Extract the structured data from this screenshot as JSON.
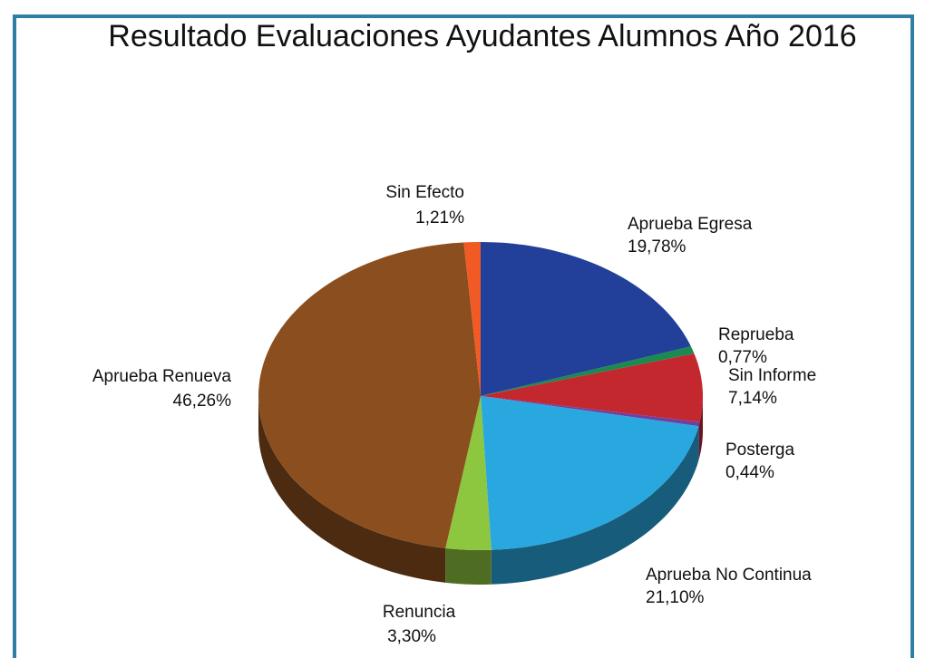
{
  "chart_data": {
    "type": "pie",
    "title": "Resultado Evaluaciones Ayudantes Alumnos  Año 2016",
    "categories": [
      "Aprueba Egresa",
      "Reprueba",
      "Sin Informe",
      "Posterga",
      "Aprueba No Continua",
      "Renuncia",
      "Aprueba Renueva",
      "Sin Efecto"
    ],
    "values": [
      19.78,
      0.77,
      7.14,
      0.44,
      21.1,
      3.3,
      46.26,
      1.21
    ],
    "value_labels": [
      "19,78%",
      "0,77%",
      "7,14%",
      "0,44%",
      "21,10%",
      "3,30%",
      "46,26%",
      "1,21%"
    ],
    "colors": [
      "#22409a",
      "#1a8a50",
      "#c4282f",
      "#7040a0",
      "#29a8e0",
      "#8dc63f",
      "#8b4e1f",
      "#f15a24"
    ]
  }
}
